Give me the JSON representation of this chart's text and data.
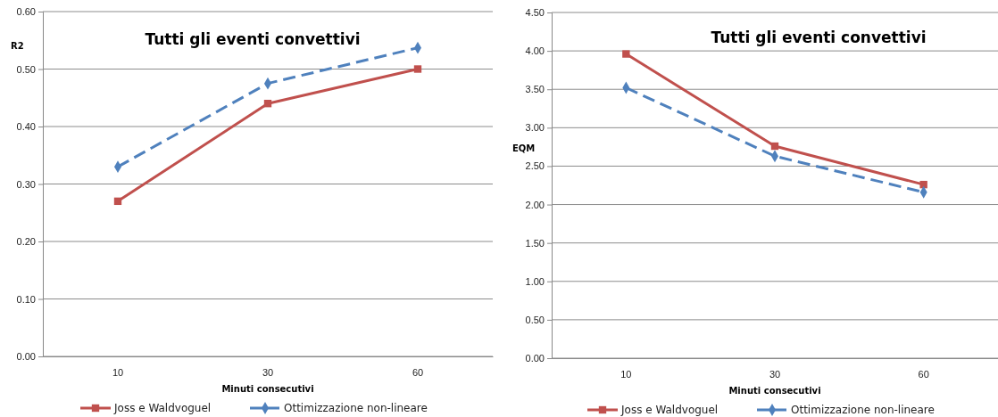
{
  "chart_data": [
    {
      "type": "line",
      "title": "Tutti gli eventi convettivi",
      "xlabel": "Minuti consecutivi",
      "ylabel": "R2",
      "categories": [
        "10",
        "30",
        "60"
      ],
      "series": [
        {
          "name": "Joss e Waldvoguel",
          "color": "#c0504d",
          "values": [
            0.27,
            0.44,
            0.5
          ],
          "marker": "square",
          "line_style": "solid"
        },
        {
          "name": "Ottimizzazione non-lineare",
          "color": "#4f81bd",
          "values": [
            0.33,
            0.475,
            0.537
          ],
          "marker": "diamond",
          "line_style": "dashed"
        }
      ],
      "ylim": [
        0,
        0.6
      ],
      "yticks": [
        {
          "value": 0,
          "label": "0.00"
        },
        {
          "value": 0.1,
          "label": "0.10"
        },
        {
          "value": 0.2,
          "label": "0.20"
        },
        {
          "value": 0.3,
          "label": "0.30"
        },
        {
          "value": 0.4,
          "label": "0.40"
        },
        {
          "value": 0.5,
          "label": "0.50"
        },
        {
          "value": 0.6,
          "label": "0.60"
        }
      ],
      "grid": "y",
      "legend": "bottom"
    },
    {
      "type": "line",
      "title": "Tutti gli eventi convettivi",
      "xlabel": "Minuti consecutivi",
      "ylabel": "EQM",
      "categories": [
        "10",
        "30",
        "60"
      ],
      "series": [
        {
          "name": "Joss e Waldvoguel",
          "color": "#c0504d",
          "values": [
            3.96,
            2.76,
            2.26
          ],
          "marker": "square",
          "line_style": "solid"
        },
        {
          "name": "Ottimizzazione non-lineare",
          "color": "#4f81bd",
          "values": [
            3.52,
            2.63,
            2.16
          ],
          "marker": "diamond",
          "line_style": "dashed"
        }
      ],
      "ylim": [
        0,
        4.5
      ],
      "yticks": [
        {
          "value": 0,
          "label": "0.00"
        },
        {
          "value": 0.5,
          "label": "0.50"
        },
        {
          "value": 1,
          "label": "1.00"
        },
        {
          "value": 1.5,
          "label": "1.50"
        },
        {
          "value": 2,
          "label": "2.00"
        },
        {
          "value": 2.5,
          "label": "2.50"
        },
        {
          "value": 3,
          "label": "3.00"
        },
        {
          "value": 3.5,
          "label": "3.50"
        },
        {
          "value": 4,
          "label": "4.00"
        },
        {
          "value": 4.5,
          "label": "4.50"
        }
      ],
      "grid": "y",
      "legend": "bottom"
    }
  ]
}
